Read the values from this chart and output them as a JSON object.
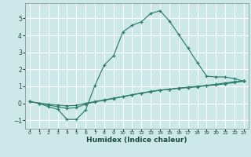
{
  "xlabel": "Humidex (Indice chaleur)",
  "background_color": "#cce8e8",
  "grid_color": "#ffffff",
  "line_color": "#2d7d6c",
  "xlim": [
    -0.5,
    23.5
  ],
  "ylim": [
    -1.5,
    5.9
  ],
  "xticks": [
    0,
    1,
    2,
    3,
    4,
    5,
    6,
    7,
    8,
    9,
    10,
    11,
    12,
    13,
    14,
    15,
    16,
    17,
    18,
    19,
    20,
    21,
    22,
    23
  ],
  "yticks": [
    -1,
    0,
    1,
    2,
    3,
    4,
    5
  ],
  "line1_x": [
    0,
    1,
    2,
    3,
    4,
    5,
    6,
    7,
    8,
    9,
    10,
    11,
    12,
    13,
    14,
    15,
    16,
    17,
    18,
    19,
    20,
    21,
    22,
    23
  ],
  "line1_y": [
    0.1,
    0.0,
    -0.2,
    -0.35,
    -0.95,
    -0.95,
    -0.4,
    1.05,
    2.25,
    2.8,
    4.2,
    4.6,
    4.8,
    5.3,
    5.45,
    4.85,
    4.05,
    3.25,
    2.4,
    1.6,
    1.55,
    1.55,
    1.45,
    1.3
  ],
  "line2_x": [
    0,
    1,
    2,
    3,
    4,
    5,
    6,
    7,
    8,
    9,
    10,
    11,
    12,
    13,
    14,
    15,
    16,
    17,
    18,
    19,
    20,
    21,
    22,
    23
  ],
  "line2_y": [
    0.1,
    0.0,
    -0.1,
    -0.2,
    -0.3,
    -0.25,
    -0.05,
    0.08,
    0.18,
    0.28,
    0.38,
    0.5,
    0.6,
    0.68,
    0.77,
    0.82,
    0.88,
    0.92,
    0.97,
    1.03,
    1.08,
    1.15,
    1.22,
    1.3
  ],
  "line3_x": [
    0,
    1,
    2,
    3,
    4,
    5,
    6,
    7,
    8,
    9,
    10,
    11,
    12,
    13,
    14,
    15,
    16,
    17,
    18,
    19,
    20,
    21,
    22,
    23
  ],
  "line3_y": [
    0.1,
    0.0,
    -0.05,
    -0.1,
    -0.15,
    -0.12,
    0.0,
    0.1,
    0.2,
    0.3,
    0.4,
    0.5,
    0.6,
    0.7,
    0.78,
    0.83,
    0.9,
    0.95,
    1.0,
    1.06,
    1.12,
    1.2,
    1.27,
    1.32
  ]
}
